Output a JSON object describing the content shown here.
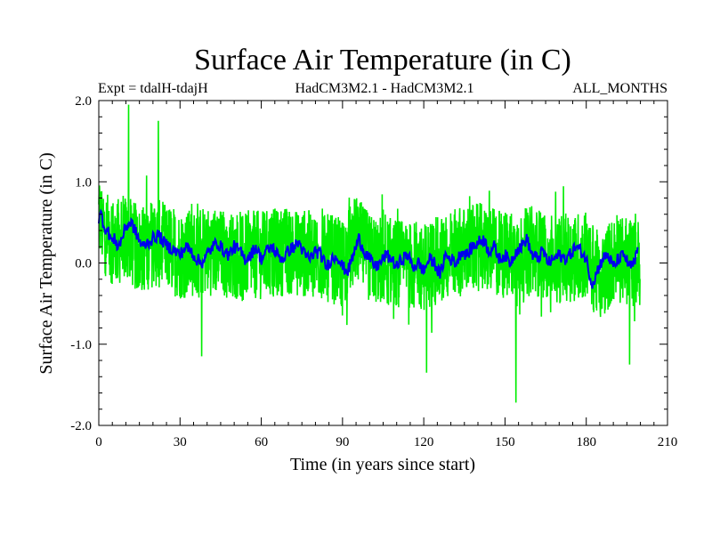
{
  "chart_data": {
    "type": "line",
    "title": "Surface Air Temperature (in C)",
    "subtitle_left": "Expt = tdalH-tdajH",
    "subtitle_center": "HadCM3M2.1 - HadCM3M2.1",
    "subtitle_right": "ALL_MONTHS",
    "xlabel": "Time (in years since start)",
    "ylabel": "Surface Air Temperature (in C)",
    "xlim": [
      0,
      210
    ],
    "ylim": [
      -2.0,
      2.0
    ],
    "x_ticks": [
      0,
      30,
      60,
      90,
      120,
      150,
      180,
      210
    ],
    "x_tick_labels": [
      "0",
      "30",
      "60",
      "90",
      "120",
      "150",
      "180",
      "210"
    ],
    "y_ticks": [
      -2.0,
      -1.0,
      0.0,
      1.0,
      2.0
    ],
    "y_tick_labels": [
      "-2.0",
      "-1.0",
      "0.0",
      "1.0",
      "2.0"
    ],
    "grid": false,
    "series": [
      {
        "name": "monthly",
        "color": "#00ee00",
        "x_start": 0,
        "x_step": 0.0833,
        "n_points": 2400,
        "envelope_x": [
          0,
          3,
          6,
          10,
          15,
          20,
          25,
          30,
          40,
          50,
          60,
          70,
          80,
          90,
          95,
          100,
          110,
          120,
          130,
          140,
          150,
          160,
          170,
          180,
          185,
          190,
          199
        ],
        "envelope_mean": [
          0.55,
          0.35,
          0.25,
          0.3,
          0.15,
          0.25,
          0.2,
          0.1,
          0.15,
          0.1,
          0.1,
          0.15,
          0.1,
          0.0,
          0.3,
          0.05,
          0.0,
          -0.05,
          0.1,
          0.2,
          0.1,
          0.15,
          0.05,
          0.1,
          -0.2,
          0.05,
          0.0
        ],
        "envelope_halfwidth": 0.55,
        "peaks": [
          {
            "x": 11,
            "y": 1.95
          },
          {
            "x": 22,
            "y": 1.75
          },
          {
            "x": 38,
            "y": -1.15
          },
          {
            "x": 121,
            "y": -1.35
          },
          {
            "x": 154,
            "y": -1.72
          },
          {
            "x": 196,
            "y": -1.25
          }
        ]
      },
      {
        "name": "smoothed",
        "color": "#0000ee",
        "x": [
          0,
          1,
          2,
          3,
          4,
          5,
          6,
          7,
          8,
          10,
          12,
          14,
          16,
          18,
          20,
          22,
          24,
          26,
          28,
          30,
          32,
          34,
          36,
          38,
          40,
          42,
          44,
          46,
          48,
          50,
          52,
          54,
          56,
          58,
          60,
          62,
          64,
          66,
          68,
          70,
          72,
          74,
          76,
          78,
          80,
          82,
          84,
          86,
          88,
          90,
          92,
          94,
          96,
          98,
          100,
          102,
          104,
          106,
          108,
          110,
          112,
          114,
          116,
          118,
          120,
          122,
          124,
          126,
          128,
          130,
          132,
          134,
          136,
          138,
          140,
          142,
          144,
          146,
          148,
          150,
          152,
          154,
          156,
          158,
          160,
          162,
          164,
          166,
          168,
          170,
          172,
          174,
          176,
          178,
          180,
          181,
          182,
          183,
          184,
          186,
          188,
          190,
          192,
          194,
          196,
          198,
          199
        ],
        "y": [
          0.55,
          0.6,
          0.45,
          0.4,
          0.35,
          0.25,
          0.3,
          0.2,
          0.25,
          0.45,
          0.5,
          0.35,
          0.2,
          0.25,
          0.3,
          0.35,
          0.25,
          0.2,
          0.15,
          0.1,
          0.2,
          0.15,
          0.05,
          0.0,
          0.1,
          0.2,
          0.25,
          0.15,
          0.1,
          0.2,
          0.15,
          0.05,
          0.1,
          0.2,
          0.05,
          0.15,
          0.2,
          0.1,
          0.05,
          0.15,
          0.2,
          0.25,
          0.1,
          0.05,
          0.15,
          0.1,
          -0.05,
          0.05,
          0.1,
          -0.05,
          -0.1,
          0.1,
          0.3,
          0.15,
          0.05,
          -0.05,
          0.0,
          0.1,
          0.05,
          -0.05,
          0.05,
          0.1,
          -0.05,
          0.0,
          -0.1,
          0.05,
          0.0,
          -0.15,
          0.1,
          0.05,
          0.0,
          0.15,
          0.1,
          0.2,
          0.25,
          0.3,
          0.15,
          0.2,
          0.05,
          0.1,
          0.0,
          0.15,
          0.2,
          0.3,
          0.1,
          0.05,
          0.15,
          0.0,
          0.05,
          0.1,
          0.05,
          0.1,
          0.2,
          0.15,
          0.05,
          -0.1,
          -0.25,
          -0.2,
          -0.1,
          0.05,
          0.1,
          -0.05,
          0.05,
          0.1,
          -0.05,
          0.0,
          0.2
        ]
      }
    ]
  }
}
